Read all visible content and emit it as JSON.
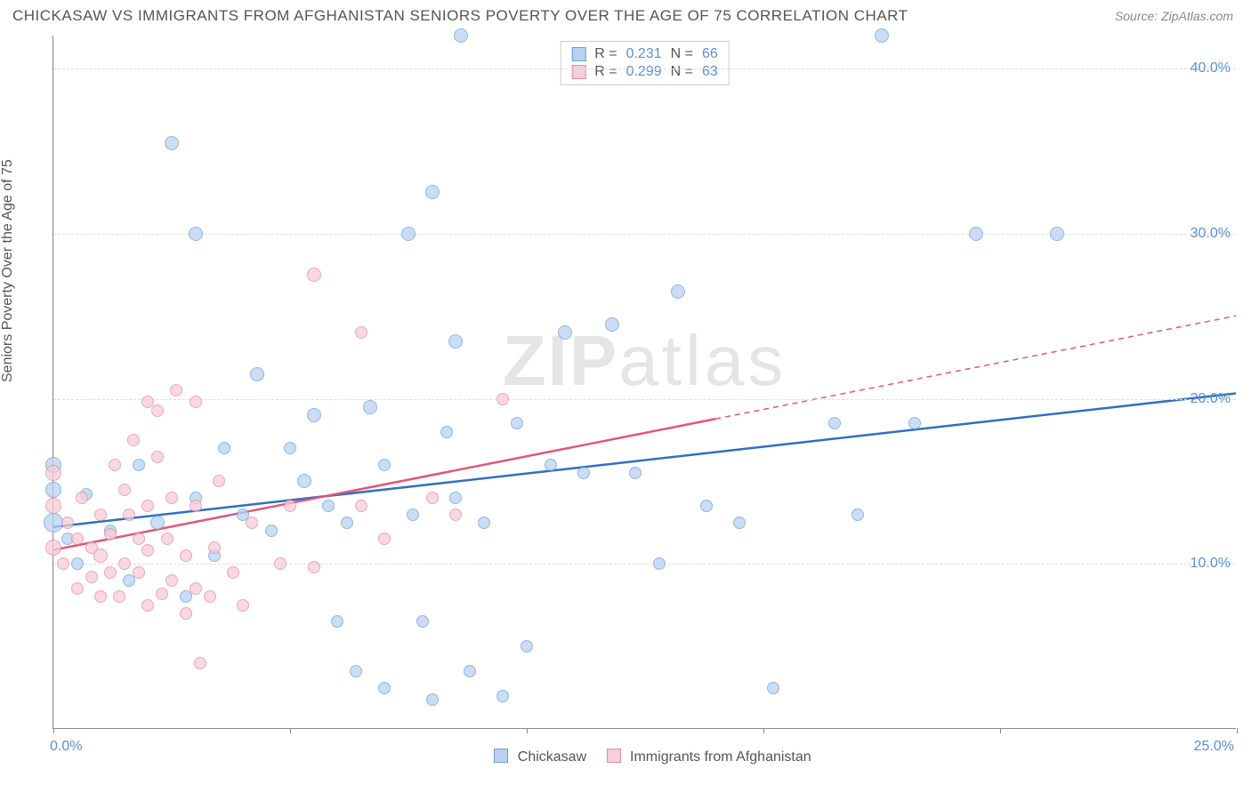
{
  "title": "CHICKASAW VS IMMIGRANTS FROM AFGHANISTAN SENIORS POVERTY OVER THE AGE OF 75 CORRELATION CHART",
  "source": "Source: ZipAtlas.com",
  "watermark_a": "ZIP",
  "watermark_b": "atlas",
  "chart": {
    "type": "scatter",
    "ylabel": "Seniors Poverty Over the Age of 75",
    "xlim": [
      0,
      25
    ],
    "ylim": [
      0,
      42
    ],
    "yticks": [
      10,
      20,
      30,
      40
    ],
    "ytick_labels": [
      "10.0%",
      "20.0%",
      "30.0%",
      "40.0%"
    ],
    "xtick_marks": [
      0,
      5,
      10,
      15,
      20,
      25
    ],
    "xtick_label_left": "0.0%",
    "xtick_label_right": "25.0%",
    "background_color": "#ffffff",
    "grid_color": "#dddddd",
    "series": [
      {
        "name": "Chickasaw",
        "fill": "#b9d2ef",
        "stroke": "#6aa0de",
        "line_color": "#2f6fc4",
        "R_label": "R  =",
        "R_value": "0.231",
        "N_label": "N  =",
        "N_value": "66",
        "trend": {
          "x1": 0,
          "y1": 12.2,
          "x2": 25,
          "y2": 20.3,
          "solid_until_x": 25
        },
        "points": [
          {
            "x": 0.0,
            "y": 12.5,
            "r": 11
          },
          {
            "x": 0.0,
            "y": 14.5,
            "r": 9
          },
          {
            "x": 0.0,
            "y": 16.0,
            "r": 9
          },
          {
            "x": 0.3,
            "y": 11.5,
            "r": 7
          },
          {
            "x": 0.5,
            "y": 10.0,
            "r": 7
          },
          {
            "x": 0.7,
            "y": 14.2,
            "r": 7
          },
          {
            "x": 1.2,
            "y": 12.0,
            "r": 7
          },
          {
            "x": 1.6,
            "y": 9.0,
            "r": 7
          },
          {
            "x": 1.8,
            "y": 16.0,
            "r": 7
          },
          {
            "x": 2.2,
            "y": 12.5,
            "r": 8
          },
          {
            "x": 2.5,
            "y": 35.5,
            "r": 8
          },
          {
            "x": 2.8,
            "y": 8.0,
            "r": 7
          },
          {
            "x": 3.0,
            "y": 14.0,
            "r": 7
          },
          {
            "x": 3.0,
            "y": 30.0,
            "r": 8
          },
          {
            "x": 3.4,
            "y": 10.5,
            "r": 7
          },
          {
            "x": 3.6,
            "y": 17.0,
            "r": 7
          },
          {
            "x": 4.0,
            "y": 13.0,
            "r": 7
          },
          {
            "x": 4.3,
            "y": 21.5,
            "r": 8
          },
          {
            "x": 4.6,
            "y": 12.0,
            "r": 7
          },
          {
            "x": 5.0,
            "y": 17.0,
            "r": 7
          },
          {
            "x": 5.3,
            "y": 15.0,
            "r": 8
          },
          {
            "x": 5.5,
            "y": 19.0,
            "r": 8
          },
          {
            "x": 5.8,
            "y": 13.5,
            "r": 7
          },
          {
            "x": 6.0,
            "y": 6.5,
            "r": 7
          },
          {
            "x": 6.2,
            "y": 12.5,
            "r": 7
          },
          {
            "x": 6.4,
            "y": 3.5,
            "r": 7
          },
          {
            "x": 6.7,
            "y": 19.5,
            "r": 8
          },
          {
            "x": 7.0,
            "y": 16.0,
            "r": 7
          },
          {
            "x": 7.0,
            "y": 2.5,
            "r": 7
          },
          {
            "x": 7.5,
            "y": 30.0,
            "r": 8
          },
          {
            "x": 7.6,
            "y": 13.0,
            "r": 7
          },
          {
            "x": 7.8,
            "y": 6.5,
            "r": 7
          },
          {
            "x": 8.0,
            "y": 1.8,
            "r": 7
          },
          {
            "x": 8.0,
            "y": 32.5,
            "r": 8
          },
          {
            "x": 8.3,
            "y": 18.0,
            "r": 7
          },
          {
            "x": 8.5,
            "y": 14.0,
            "r": 7
          },
          {
            "x": 8.5,
            "y": 23.5,
            "r": 8
          },
          {
            "x": 8.6,
            "y": 42.0,
            "r": 8
          },
          {
            "x": 8.8,
            "y": 3.5,
            "r": 7
          },
          {
            "x": 9.1,
            "y": 12.5,
            "r": 7
          },
          {
            "x": 9.5,
            "y": 2.0,
            "r": 7
          },
          {
            "x": 9.8,
            "y": 18.5,
            "r": 7
          },
          {
            "x": 10.0,
            "y": 5.0,
            "r": 7
          },
          {
            "x": 10.5,
            "y": 16.0,
            "r": 7
          },
          {
            "x": 10.8,
            "y": 24.0,
            "r": 8
          },
          {
            "x": 11.2,
            "y": 15.5,
            "r": 7
          },
          {
            "x": 11.8,
            "y": 24.5,
            "r": 8
          },
          {
            "x": 12.3,
            "y": 15.5,
            "r": 7
          },
          {
            "x": 12.8,
            "y": 10.0,
            "r": 7
          },
          {
            "x": 13.2,
            "y": 26.5,
            "r": 8
          },
          {
            "x": 13.8,
            "y": 13.5,
            "r": 7
          },
          {
            "x": 14.5,
            "y": 12.5,
            "r": 7
          },
          {
            "x": 15.2,
            "y": 2.5,
            "r": 7
          },
          {
            "x": 16.5,
            "y": 18.5,
            "r": 7
          },
          {
            "x": 17.0,
            "y": 13.0,
            "r": 7
          },
          {
            "x": 17.5,
            "y": 42.0,
            "r": 8
          },
          {
            "x": 18.2,
            "y": 18.5,
            "r": 7
          },
          {
            "x": 19.5,
            "y": 30.0,
            "r": 8
          },
          {
            "x": 21.2,
            "y": 30.0,
            "r": 8
          }
        ]
      },
      {
        "name": "Immigrants from Afghanistan",
        "fill": "#f6cdd8",
        "stroke": "#e68aa4",
        "line_color": "#e25578",
        "R_label": "R  =",
        "R_value": "0.299",
        "N_label": "N  =",
        "N_value": "63",
        "trend": {
          "x1": 0,
          "y1": 10.8,
          "x2": 25,
          "y2": 25.0,
          "solid_until_x": 14
        },
        "points": [
          {
            "x": 0.0,
            "y": 11.0,
            "r": 9
          },
          {
            "x": 0.0,
            "y": 13.5,
            "r": 9
          },
          {
            "x": 0.0,
            "y": 15.5,
            "r": 9
          },
          {
            "x": 0.2,
            "y": 10.0,
            "r": 7
          },
          {
            "x": 0.3,
            "y": 12.5,
            "r": 7
          },
          {
            "x": 0.5,
            "y": 8.5,
            "r": 7
          },
          {
            "x": 0.5,
            "y": 11.5,
            "r": 7
          },
          {
            "x": 0.6,
            "y": 14.0,
            "r": 7
          },
          {
            "x": 0.8,
            "y": 9.2,
            "r": 7
          },
          {
            "x": 0.8,
            "y": 11.0,
            "r": 7
          },
          {
            "x": 1.0,
            "y": 8.0,
            "r": 7
          },
          {
            "x": 1.0,
            "y": 10.5,
            "r": 8
          },
          {
            "x": 1.0,
            "y": 13.0,
            "r": 7
          },
          {
            "x": 1.2,
            "y": 9.5,
            "r": 7
          },
          {
            "x": 1.2,
            "y": 11.8,
            "r": 7
          },
          {
            "x": 1.3,
            "y": 16.0,
            "r": 7
          },
          {
            "x": 1.4,
            "y": 8.0,
            "r": 7
          },
          {
            "x": 1.5,
            "y": 10.0,
            "r": 7
          },
          {
            "x": 1.5,
            "y": 14.5,
            "r": 7
          },
          {
            "x": 1.6,
            "y": 13.0,
            "r": 7
          },
          {
            "x": 1.7,
            "y": 17.5,
            "r": 7
          },
          {
            "x": 1.8,
            "y": 9.5,
            "r": 7
          },
          {
            "x": 1.8,
            "y": 11.5,
            "r": 7
          },
          {
            "x": 2.0,
            "y": 7.5,
            "r": 7
          },
          {
            "x": 2.0,
            "y": 10.8,
            "r": 7
          },
          {
            "x": 2.0,
            "y": 13.5,
            "r": 7
          },
          {
            "x": 2.0,
            "y": 19.8,
            "r": 7
          },
          {
            "x": 2.2,
            "y": 16.5,
            "r": 7
          },
          {
            "x": 2.2,
            "y": 19.3,
            "r": 7
          },
          {
            "x": 2.3,
            "y": 8.2,
            "r": 7
          },
          {
            "x": 2.4,
            "y": 11.5,
            "r": 7
          },
          {
            "x": 2.5,
            "y": 9.0,
            "r": 7
          },
          {
            "x": 2.5,
            "y": 14.0,
            "r": 7
          },
          {
            "x": 2.6,
            "y": 20.5,
            "r": 7
          },
          {
            "x": 2.8,
            "y": 7.0,
            "r": 7
          },
          {
            "x": 2.8,
            "y": 10.5,
            "r": 7
          },
          {
            "x": 3.0,
            "y": 8.5,
            "r": 7
          },
          {
            "x": 3.0,
            "y": 13.5,
            "r": 7
          },
          {
            "x": 3.0,
            "y": 19.8,
            "r": 7
          },
          {
            "x": 3.1,
            "y": 4.0,
            "r": 7
          },
          {
            "x": 3.3,
            "y": 8.0,
            "r": 7
          },
          {
            "x": 3.4,
            "y": 11.0,
            "r": 7
          },
          {
            "x": 3.5,
            "y": 15.0,
            "r": 7
          },
          {
            "x": 3.8,
            "y": 9.5,
            "r": 7
          },
          {
            "x": 4.0,
            "y": 7.5,
            "r": 7
          },
          {
            "x": 4.2,
            "y": 12.5,
            "r": 7
          },
          {
            "x": 4.8,
            "y": 10.0,
            "r": 7
          },
          {
            "x": 5.0,
            "y": 13.5,
            "r": 7
          },
          {
            "x": 5.5,
            "y": 9.8,
            "r": 7
          },
          {
            "x": 5.5,
            "y": 27.5,
            "r": 8
          },
          {
            "x": 6.5,
            "y": 13.5,
            "r": 7
          },
          {
            "x": 6.5,
            "y": 24.0,
            "r": 7
          },
          {
            "x": 7.0,
            "y": 11.5,
            "r": 7
          },
          {
            "x": 8.0,
            "y": 14.0,
            "r": 7
          },
          {
            "x": 8.5,
            "y": 13.0,
            "r": 7
          },
          {
            "x": 9.5,
            "y": 20.0,
            "r": 7
          }
        ]
      }
    ]
  }
}
